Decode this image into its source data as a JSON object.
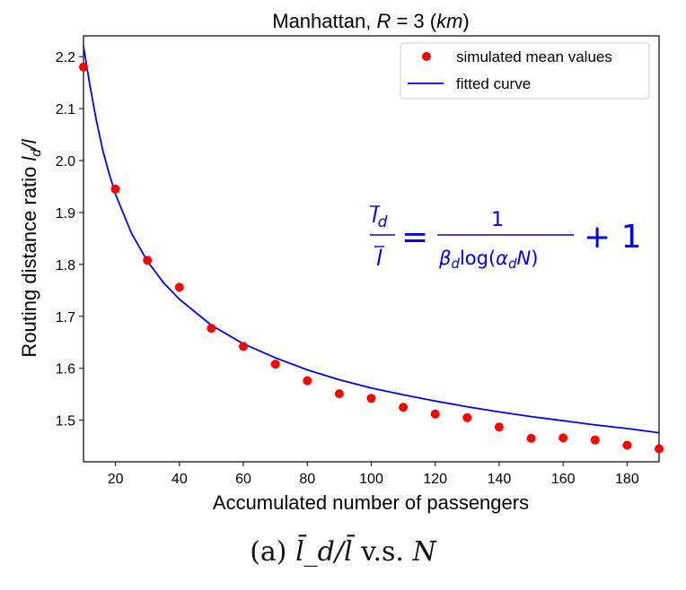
{
  "chart_data": {
    "type": "scatter",
    "title": "Manhattan, R = 3 (km)",
    "xlabel": "Accumulated number of passengers",
    "ylabel": "Routing distance ratio l̄_d/l̄",
    "xlim": [
      10,
      190
    ],
    "ylim": [
      1.42,
      2.24
    ],
    "xticks": [
      20,
      40,
      60,
      80,
      100,
      120,
      140,
      160,
      180
    ],
    "yticks": [
      1.5,
      1.6,
      1.7,
      1.8,
      1.9,
      2.0,
      2.1,
      2.2
    ],
    "ytick_labels": [
      "1.5",
      "1.6",
      "1.7",
      "1.8",
      "1.9",
      "2.0",
      "2.1",
      "2.2"
    ],
    "legend_position": "top-right",
    "grid": false,
    "series": [
      {
        "name": "simulated mean values",
        "kind": "scatter",
        "color": "#ff0000",
        "x": [
          10,
          20,
          30,
          40,
          50,
          60,
          70,
          80,
          90,
          100,
          110,
          120,
          130,
          140,
          150,
          160,
          170,
          180,
          190
        ],
        "y": [
          2.18,
          1.945,
          1.808,
          1.756,
          1.677,
          1.642,
          1.608,
          1.576,
          1.551,
          1.542,
          1.525,
          1.512,
          1.505,
          1.487,
          1.465,
          1.466,
          1.462,
          1.452,
          1.445
        ]
      },
      {
        "name": "fitted curve",
        "kind": "line",
        "color": "#0000ff",
        "x": [
          10,
          12,
          14,
          16,
          18,
          20,
          25,
          30,
          35,
          40,
          50,
          60,
          70,
          80,
          90,
          100,
          110,
          120,
          130,
          140,
          150,
          160,
          170,
          180,
          190
        ],
        "y": [
          2.22,
          2.145,
          2.078,
          2.02,
          1.975,
          1.935,
          1.86,
          1.806,
          1.765,
          1.733,
          1.683,
          1.647,
          1.62,
          1.597,
          1.578,
          1.562,
          1.549,
          1.537,
          1.526,
          1.516,
          1.507,
          1.499,
          1.491,
          1.484,
          1.476
        ]
      }
    ],
    "annotation": {
      "text": "l̄_d / l̄ = 1 / (β_d log(α_d N)) + 1",
      "color": "#0000ff"
    }
  },
  "caption": {
    "label": "(a) ",
    "math": "l̄_d/l̄",
    "middle": " v.s. ",
    "var": "N"
  }
}
